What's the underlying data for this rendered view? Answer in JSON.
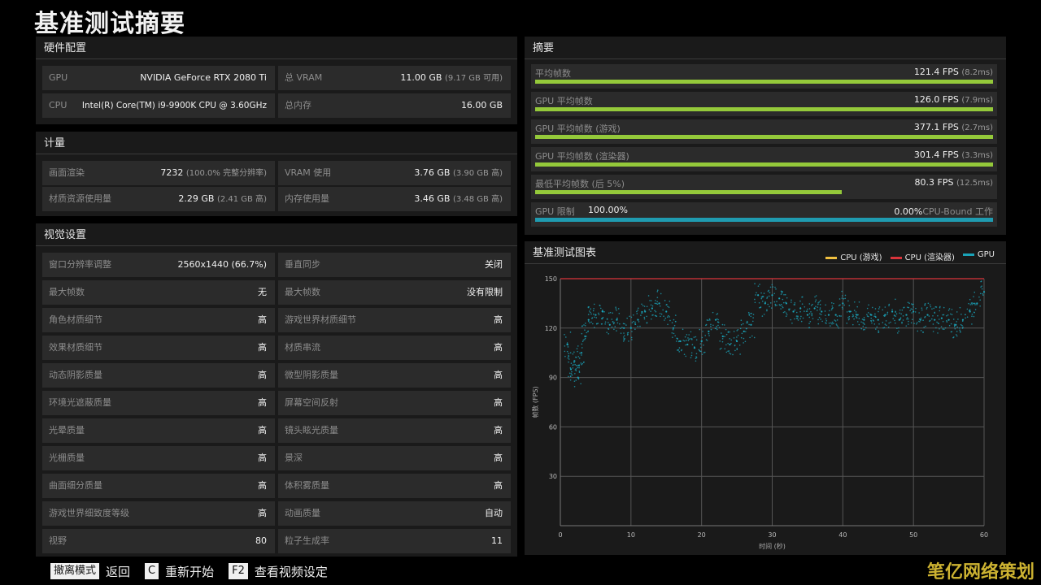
{
  "page_title": "基准测试摘要",
  "hardware": {
    "title": "硬件配置",
    "rows": [
      {
        "label": "GPU",
        "value": "NVIDIA GeForce RTX 2080 Ti",
        "sub": ""
      },
      {
        "label": "总 VRAM",
        "value": "11.00 GB",
        "sub": "(9.17 GB 可用)"
      },
      {
        "label": "CPU",
        "value": "Intel(R) Core(TM) i9-9900K CPU @ 3.60GHz",
        "sub": ""
      },
      {
        "label": "总内存",
        "value": "16.00 GB",
        "sub": ""
      }
    ]
  },
  "metering": {
    "title": "计量",
    "rows": [
      {
        "label": "画面渲染",
        "value": "7232",
        "sub": "(100.0% 完整分辨率)"
      },
      {
        "label": "VRAM 使用",
        "value": "3.76 GB",
        "sub": "(3.90 GB 高)"
      },
      {
        "label": "材质资源使用量",
        "value": "2.29 GB",
        "sub": "(2.41 GB 高)"
      },
      {
        "label": "内存使用量",
        "value": "3.46 GB",
        "sub": "(3.48 GB 高)"
      }
    ]
  },
  "visual": {
    "title": "视觉设置",
    "rows": [
      {
        "label": "窗口分辨率调整",
        "value": "2560x1440 (66.7%)"
      },
      {
        "label": "垂直同步",
        "value": "关闭"
      },
      {
        "label": "最大帧数",
        "value": "无"
      },
      {
        "label": "最大帧数",
        "value": "没有限制"
      },
      {
        "label": "角色材质细节",
        "value": "高"
      },
      {
        "label": "游戏世界材质细节",
        "value": "高"
      },
      {
        "label": "效果材质细节",
        "value": "高"
      },
      {
        "label": "材质串流",
        "value": "高"
      },
      {
        "label": "动态阴影质量",
        "value": "高"
      },
      {
        "label": "微型阴影质量",
        "value": "高"
      },
      {
        "label": "环境光遮蔽质量",
        "value": "高"
      },
      {
        "label": "屏幕空间反射",
        "value": "高"
      },
      {
        "label": "光晕质量",
        "value": "高"
      },
      {
        "label": "镜头眩光质量",
        "value": "高"
      },
      {
        "label": "光栅质量",
        "value": "高"
      },
      {
        "label": "景深",
        "value": "高"
      },
      {
        "label": "曲面细分质量",
        "value": "高"
      },
      {
        "label": "体积雾质量",
        "value": "高"
      },
      {
        "label": "游戏世界细致度等级",
        "value": "高"
      },
      {
        "label": "动画质量",
        "value": "自动"
      },
      {
        "label": "视野",
        "value": "80"
      },
      {
        "label": "粒子生成率",
        "value": "11"
      }
    ]
  },
  "summary": {
    "title": "摘要",
    "rows": [
      {
        "label": "平均帧数",
        "value": "121.4 FPS",
        "sub": "(8.2ms)",
        "fill": 1.0
      },
      {
        "label": "GPU 平均帧数",
        "value": "126.0 FPS",
        "sub": "(7.9ms)",
        "fill": 1.0
      },
      {
        "label": "GPU 平均帧数 (游戏)",
        "value": "377.1 FPS",
        "sub": "(2.7ms)",
        "fill": 1.0
      },
      {
        "label": "GPU 平均帧数 (渲染器)",
        "value": "301.4 FPS",
        "sub": "(3.3ms)",
        "fill": 1.0
      },
      {
        "label": "最低平均帧数 (后 5%)",
        "value": "80.3 FPS",
        "sub": "(12.5ms)",
        "fill": 0.67
      }
    ],
    "gpu_limit": {
      "label": "GPU 限制",
      "value_left": "100.00%",
      "value_right": "0.00%",
      "tail": "CPU-Bound 工作",
      "fill": 1.0
    }
  },
  "chart_panel_title": "基准测试图表",
  "colors": {
    "cpu_game": "#f0c040",
    "cpu_render": "#d9343b",
    "gpu": "#1aa3b8",
    "bar_green": "#94c93a"
  },
  "chart_data": {
    "type": "scatter",
    "legend": [
      "CPU (游戏)",
      "CPU (渲染器)",
      "GPU"
    ],
    "xlabel": "时间 (秒)",
    "ylabel": "帧数 (FPS)",
    "xlim": [
      0,
      60
    ],
    "ylim": [
      0,
      150
    ],
    "xticks": [
      "0",
      "10",
      "20",
      "30",
      "40",
      "50",
      "60"
    ],
    "yticks": [
      "30",
      "60",
      "90",
      "120",
      "150"
    ],
    "grid": true,
    "legend_position": "top-right",
    "series": [
      {
        "name": "CPU (渲染器)",
        "x": [
          0,
          60
        ],
        "y": [
          150,
          150
        ]
      },
      {
        "name": "GPU",
        "x": [
          1,
          1.5,
          2,
          2.5,
          3,
          3.5,
          4,
          5,
          6,
          7,
          8,
          9,
          10,
          11,
          12,
          13,
          14,
          15,
          16,
          17,
          18,
          19,
          20,
          21,
          22,
          23,
          24,
          25,
          26,
          27,
          28,
          29,
          30,
          31,
          32,
          33,
          34,
          35,
          36,
          37,
          38,
          39,
          40,
          41,
          42,
          43,
          44,
          45,
          46,
          47,
          48,
          49,
          50,
          51,
          52,
          53,
          54,
          55,
          56,
          57,
          58,
          59,
          60
        ],
        "y": [
          110,
          95,
          100,
          90,
          105,
          115,
          125,
          128,
          130,
          122,
          125,
          120,
          120,
          125,
          130,
          132,
          135,
          130,
          120,
          112,
          110,
          108,
          112,
          118,
          125,
          115,
          110,
          112,
          118,
          122,
          140,
          135,
          140,
          138,
          135,
          130,
          132,
          128,
          132,
          130,
          128,
          128,
          135,
          130,
          128,
          125,
          128,
          125,
          128,
          130,
          125,
          128,
          130,
          125,
          128,
          125,
          126,
          125,
          122,
          125,
          130,
          135,
          142
        ]
      }
    ]
  },
  "footer": [
    {
      "key": "撤离模式",
      "action": "返回"
    },
    {
      "key": "C",
      "action": "重新开始"
    },
    {
      "key": "F2",
      "action": "查看视频设定"
    }
  ],
  "watermark": "笔亿网络策划"
}
